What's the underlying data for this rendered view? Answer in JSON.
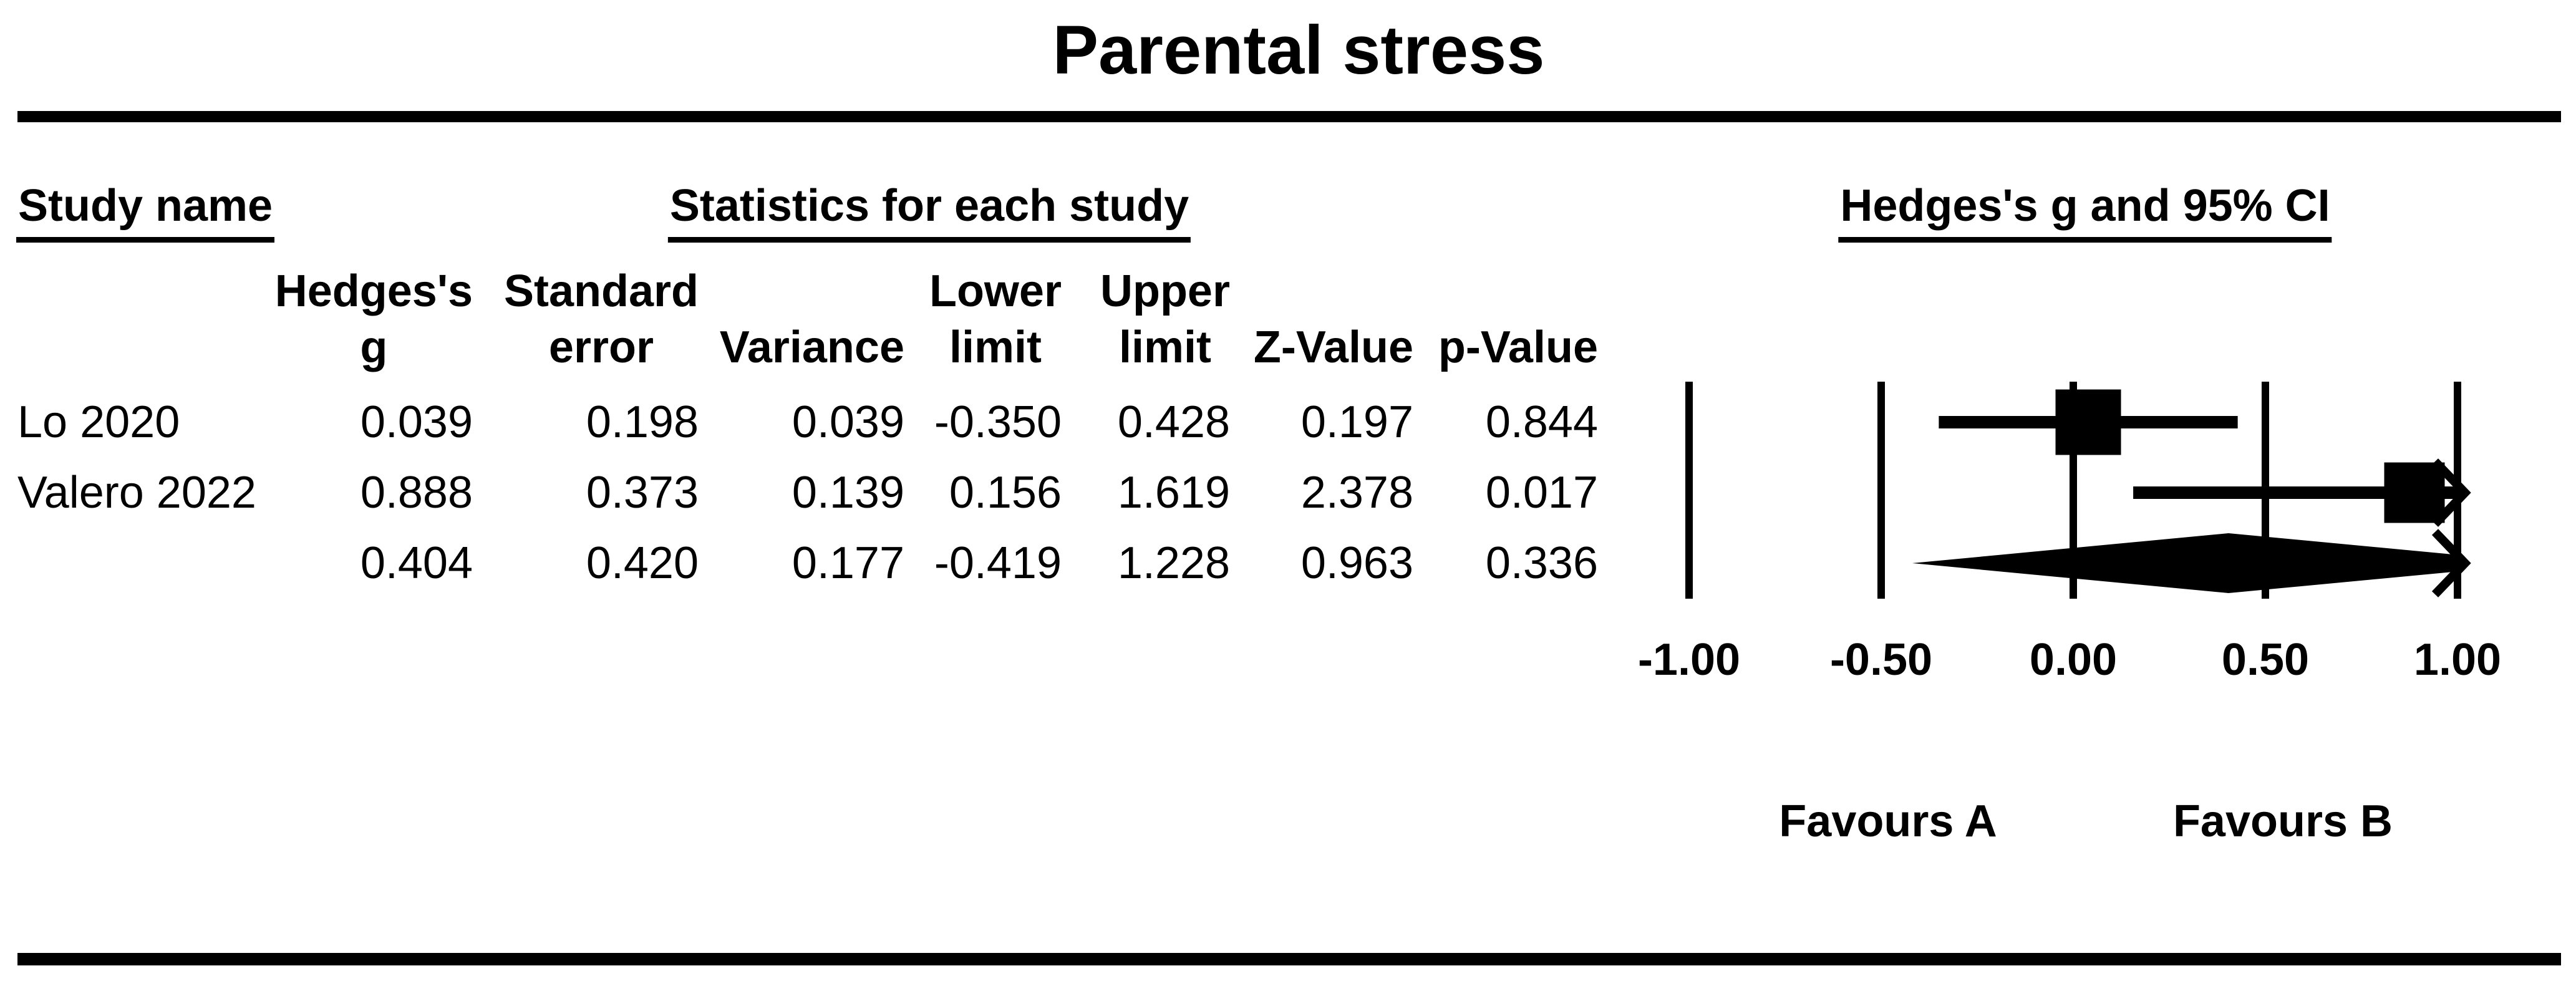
{
  "title": "Parental stress",
  "section_headers": {
    "study_name": "Study name",
    "statistics": "Statistics for each study",
    "effect": "Hedges's g and 95% CI"
  },
  "table": {
    "column_headers": {
      "g": "Hedges's\ng",
      "se": "Standard\nerror",
      "variance": "Variance",
      "lower": "Lower\nlimit",
      "upper": "Upper\nlimit",
      "z": "Z-Value",
      "p": "p-Value"
    },
    "rows": [
      {
        "study": "Lo 2020",
        "g": "0.039",
        "se": "0.198",
        "variance": "0.039",
        "lower": "-0.350",
        "upper": "0.428",
        "z": "0.197",
        "p": "0.844"
      },
      {
        "study": "Valero 2022",
        "g": "0.888",
        "se": "0.373",
        "variance": "0.139",
        "lower": "0.156",
        "upper": "1.619",
        "z": "2.378",
        "p": "0.017"
      },
      {
        "study": "",
        "g": "0.404",
        "se": "0.420",
        "variance": "0.177",
        "lower": "-0.419",
        "upper": "1.228",
        "z": "0.963",
        "p": "0.336"
      }
    ]
  },
  "axis_labels": [
    "-1.00",
    "-0.50",
    "0.00",
    "0.50",
    "1.00"
  ],
  "favours": {
    "a": "Favours A",
    "b": "Favours B"
  },
  "colors": {
    "ink": "#000000",
    "background": "#ffffff"
  },
  "chart_data": {
    "type": "forest",
    "title": "Parental stress",
    "effect_measure": "Hedges's g and 95% CI",
    "axis": {
      "min": -1.0,
      "max": 1.0,
      "ticks": [
        -1.0,
        -0.5,
        0.0,
        0.5,
        1.0
      ],
      "tick_labels": [
        "-1.00",
        "-0.50",
        "0.00",
        "0.50",
        "1.00"
      ]
    },
    "studies": [
      {
        "name": "Lo 2020",
        "g": 0.039,
        "se": 0.198,
        "variance": 0.039,
        "lower": -0.35,
        "upper": 0.428,
        "z": 0.197,
        "p": 0.844,
        "marker": "square",
        "marker_px": 105
      },
      {
        "name": "Valero 2022",
        "g": 0.888,
        "se": 0.373,
        "variance": 0.139,
        "lower": 0.156,
        "upper": 1.619,
        "z": 2.378,
        "p": 0.017,
        "marker": "square",
        "marker_px": 97
      }
    ],
    "summary": {
      "g": 0.404,
      "se": 0.42,
      "variance": 0.177,
      "lower": -0.419,
      "upper": 1.228,
      "z": 0.963,
      "p": 0.336,
      "marker": "diamond"
    },
    "footer_left": "Favours A",
    "footer_right": "Favours B",
    "legend_position": "none",
    "grid": "vertical-gridlines"
  }
}
